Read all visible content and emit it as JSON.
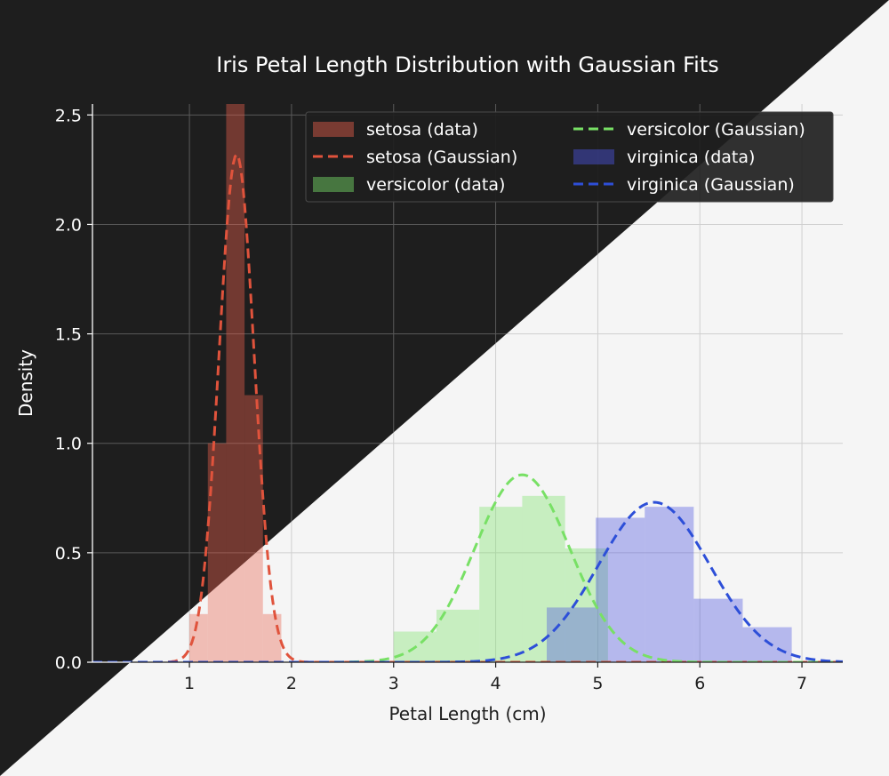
{
  "chart_data": {
    "type": "bar",
    "title": "Iris Petal Length Distribution with Gaussian Fits",
    "xlabel": "Petal Length (cm)",
    "ylabel": "Density",
    "xlim": [
      0.05,
      7.4
    ],
    "ylim": [
      0,
      2.55
    ],
    "xticks": [
      "1",
      "2",
      "3",
      "4",
      "5",
      "6",
      "7"
    ],
    "yticks": [
      "0.0",
      "0.5",
      "1.0",
      "1.5",
      "2.0",
      "2.5"
    ],
    "grid": true,
    "legend_position": "top-right",
    "series": [
      {
        "name": "setosa",
        "data_label": "setosa (data)",
        "fit_label": "setosa (Gaussian)",
        "color": "#e8604c",
        "fit_color": "#e0533c",
        "bins": [
          {
            "x0": 1.0,
            "x1": 1.18,
            "density": 0.22
          },
          {
            "x0": 1.18,
            "x1": 1.36,
            "density": 1.0
          },
          {
            "x0": 1.36,
            "x1": 1.54,
            "density": 2.55
          },
          {
            "x0": 1.54,
            "x1": 1.72,
            "density": 1.22
          },
          {
            "x0": 1.72,
            "x1": 1.9,
            "density": 0.22
          }
        ],
        "mean": 1.462,
        "std": 0.172
      },
      {
        "name": "versicolor",
        "data_label": "versicolor (data)",
        "fit_label": "versicolor (Gaussian)",
        "color": "#7be36a",
        "fit_color": "#78e065",
        "bins": [
          {
            "x0": 3.0,
            "x1": 3.42,
            "density": 0.14
          },
          {
            "x0": 3.42,
            "x1": 3.84,
            "density": 0.24
          },
          {
            "x0": 3.84,
            "x1": 4.26,
            "density": 0.71
          },
          {
            "x0": 4.26,
            "x1": 4.68,
            "density": 0.76
          },
          {
            "x0": 4.68,
            "x1": 5.1,
            "density": 0.52
          }
        ],
        "mean": 4.26,
        "std": 0.466
      },
      {
        "name": "virginica",
        "data_label": "virginica (data)",
        "fit_label": "virginica (Gaussian)",
        "color": "#4b55e0",
        "fit_color": "#2d4fd8",
        "bins": [
          {
            "x0": 4.5,
            "x1": 4.98,
            "density": 0.25
          },
          {
            "x0": 4.98,
            "x1": 5.46,
            "density": 0.66
          },
          {
            "x0": 5.46,
            "x1": 5.94,
            "density": 0.71
          },
          {
            "x0": 5.94,
            "x1": 6.42,
            "density": 0.29
          },
          {
            "x0": 6.42,
            "x1": 6.9,
            "density": 0.16
          }
        ],
        "mean": 5.552,
        "std": 0.546
      }
    ]
  },
  "theme": {
    "dark_bg": "#1e1e1e",
    "light_bg": "#f5f5f5"
  }
}
